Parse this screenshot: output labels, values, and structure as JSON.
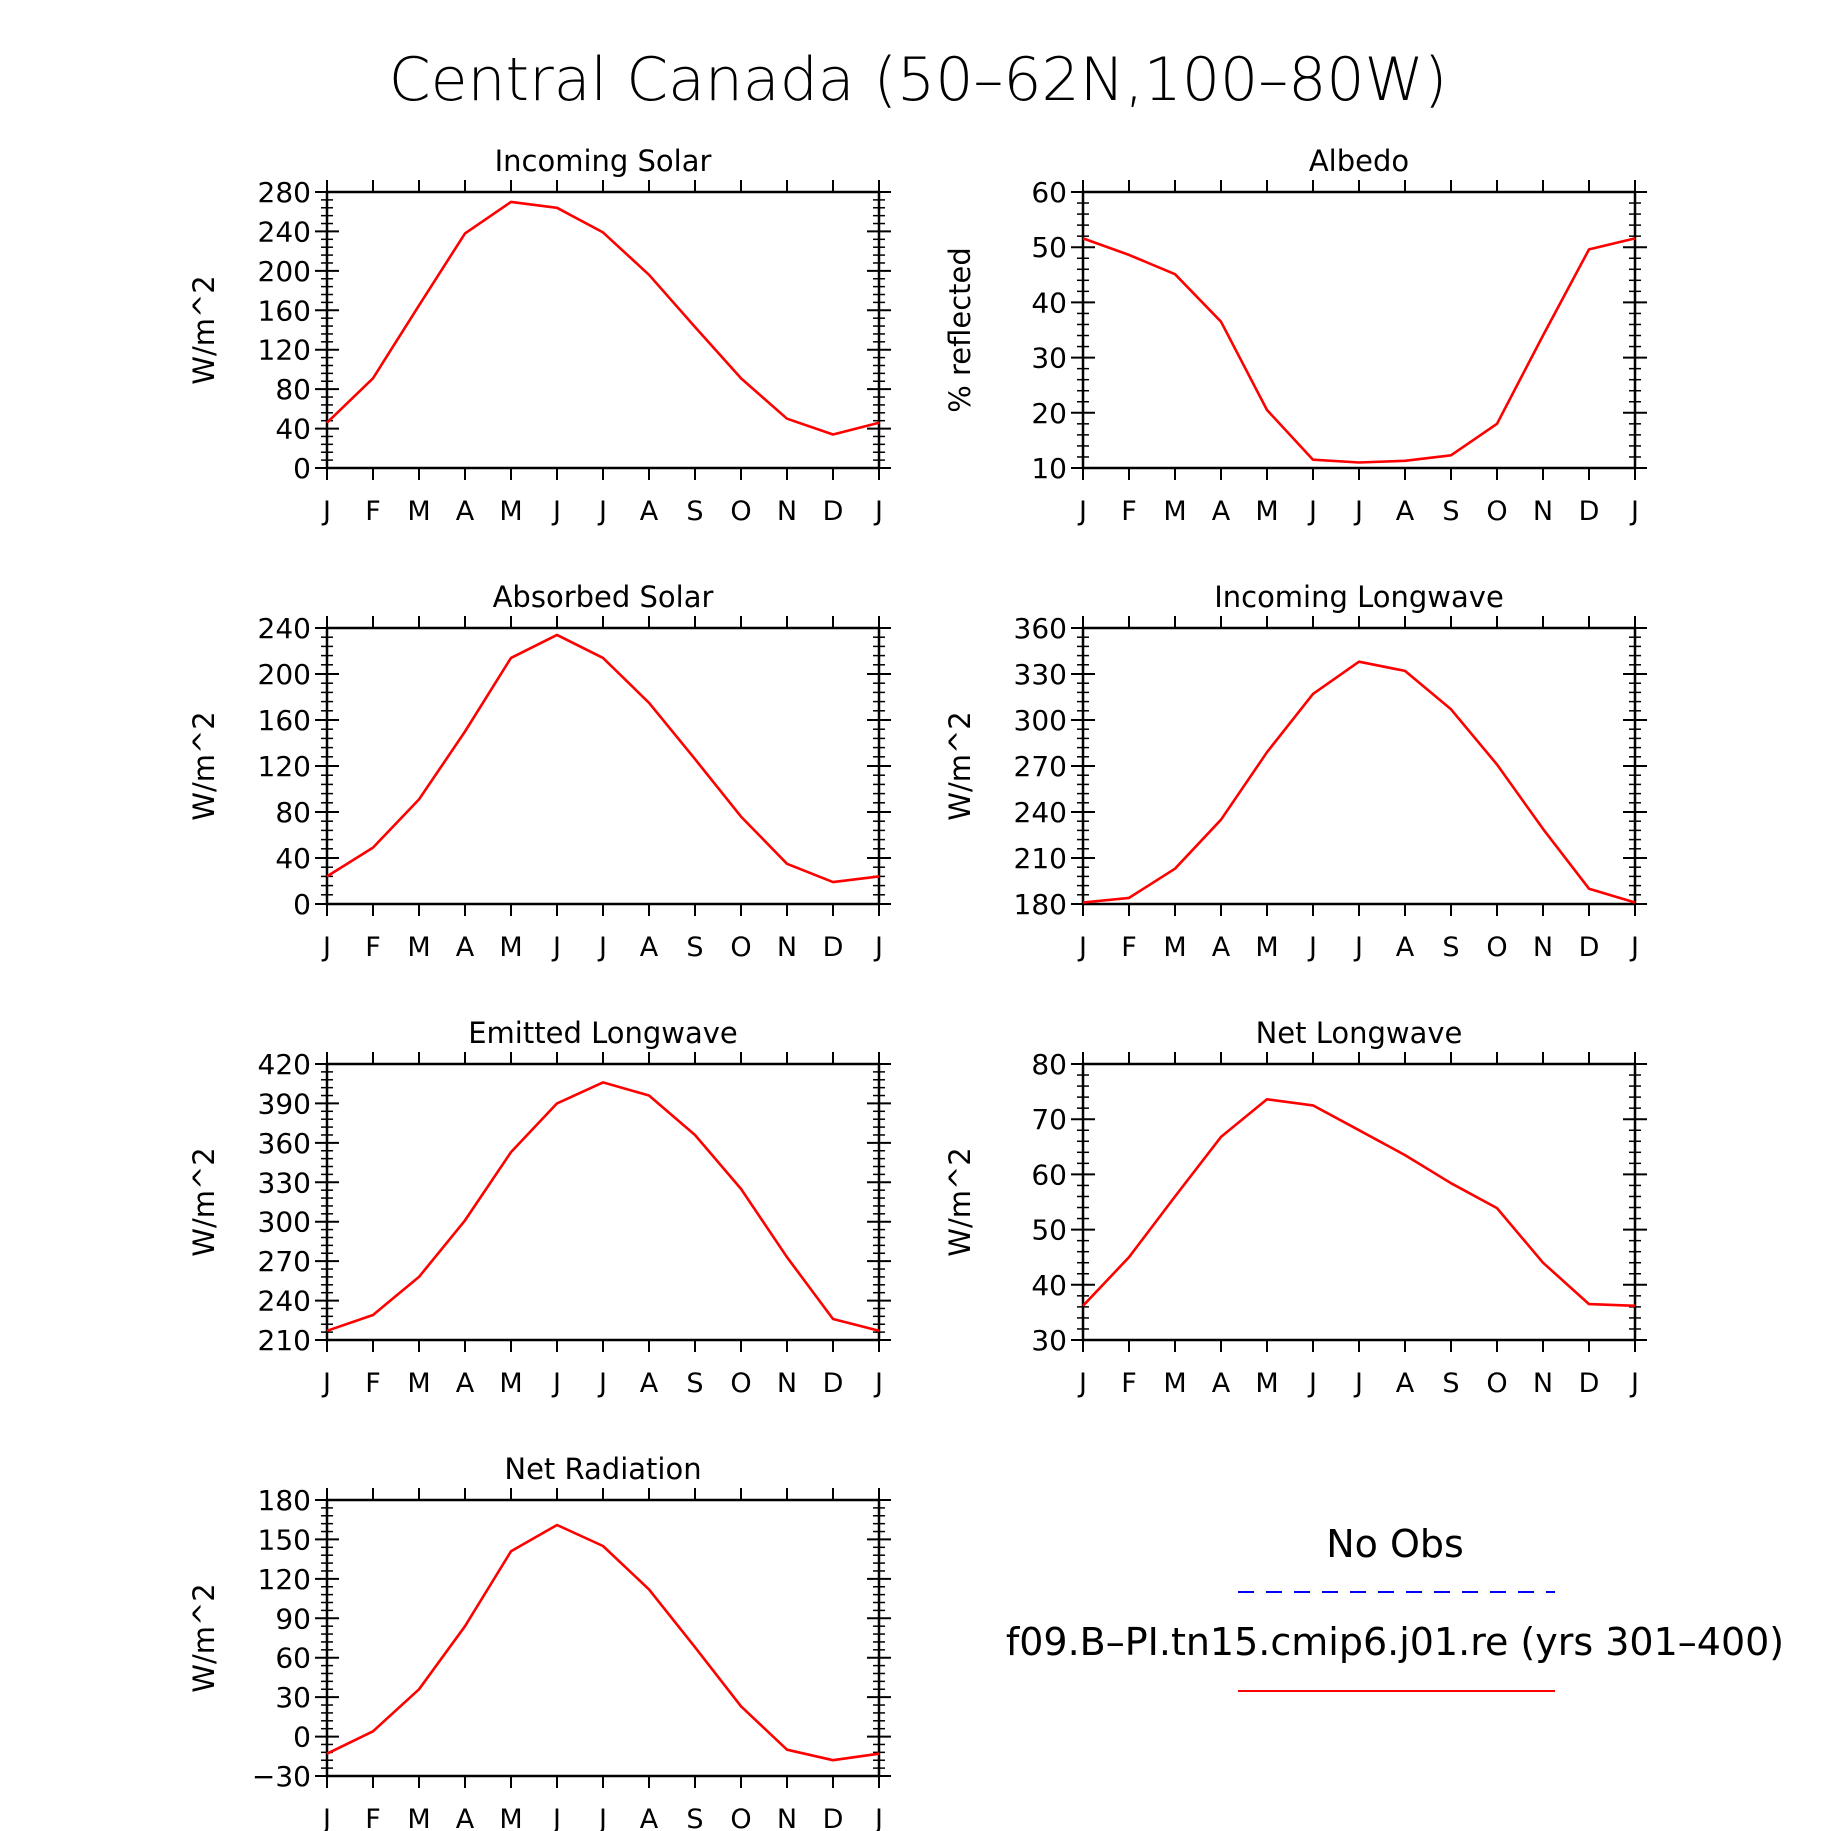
{
  "title": "Central Canada (50–62N,100–80W)",
  "month_labels": [
    "J",
    "F",
    "M",
    "A",
    "M",
    "J",
    "J",
    "A",
    "S",
    "O",
    "N",
    "D",
    "J"
  ],
  "legend": {
    "obs_label": "No Obs",
    "model_label": "f09.B–PI.tn15.cmip6.j01.re (yrs 301–400)",
    "obs_color": "#0000ff",
    "model_color": "#ff0000"
  },
  "chart_data": [
    {
      "type": "line",
      "title": "Incoming Solar",
      "ylabel": "W/m^2",
      "ylim": [
        0,
        280
      ],
      "yticks": [
        0,
        40,
        80,
        120,
        160,
        200,
        240,
        280
      ],
      "series": [
        {
          "values": [
            46,
            91,
            165,
            238,
            270,
            264,
            239,
            196,
            143,
            91,
            50,
            34,
            46
          ]
        }
      ]
    },
    {
      "type": "line",
      "title": "Albedo",
      "ylabel": "% reflected",
      "ylim": [
        10,
        60
      ],
      "yticks": [
        10,
        20,
        30,
        40,
        50,
        60
      ],
      "series": [
        {
          "values": [
            51.6,
            48.6,
            45.1,
            36.5,
            20.5,
            11.5,
            11.0,
            11.3,
            12.3,
            18.0,
            34.0,
            49.6,
            51.6
          ]
        }
      ]
    },
    {
      "type": "line",
      "title": "Absorbed Solar",
      "ylabel": "W/m^2",
      "ylim": [
        0,
        240
      ],
      "yticks": [
        0,
        40,
        80,
        120,
        160,
        200,
        240
      ],
      "series": [
        {
          "values": [
            24,
            49,
            91,
            150,
            214,
            234,
            214,
            175,
            126,
            76,
            35,
            19,
            24
          ]
        }
      ]
    },
    {
      "type": "line",
      "title": "Incoming Longwave",
      "ylabel": "W/m^2",
      "ylim": [
        180,
        360
      ],
      "yticks": [
        180,
        210,
        240,
        270,
        300,
        330,
        360
      ],
      "series": [
        {
          "values": [
            181,
            184,
            203,
            235,
            279,
            317,
            338,
            332,
            307,
            271,
            229,
            190,
            181
          ]
        }
      ]
    },
    {
      "type": "line",
      "title": "Emitted Longwave",
      "ylabel": "W/m^2",
      "ylim": [
        210,
        420
      ],
      "yticks": [
        210,
        240,
        270,
        300,
        330,
        360,
        390,
        420
      ],
      "series": [
        {
          "values": [
            217,
            229,
            258,
            301,
            353,
            390,
            406,
            396,
            366,
            325,
            273,
            226,
            217
          ]
        }
      ]
    },
    {
      "type": "line",
      "title": "Net Longwave",
      "ylabel": "W/m^2",
      "ylim": [
        30,
        80
      ],
      "yticks": [
        30,
        40,
        50,
        60,
        70,
        80
      ],
      "series": [
        {
          "values": [
            36.2,
            45.0,
            56.0,
            66.8,
            73.6,
            72.5,
            68.0,
            63.5,
            58.4,
            53.9,
            44.0,
            36.5,
            36.2
          ]
        }
      ]
    },
    {
      "type": "line",
      "title": "Net Radiation",
      "ylabel": "W/m^2",
      "ylim": [
        -30,
        180
      ],
      "yticks": [
        -30,
        0,
        30,
        60,
        90,
        120,
        150,
        180
      ],
      "series": [
        {
          "values": [
            -13,
            4,
            36,
            84,
            141,
            161,
            145,
            112,
            68,
            23,
            -10,
            -18,
            -13
          ]
        }
      ]
    }
  ]
}
